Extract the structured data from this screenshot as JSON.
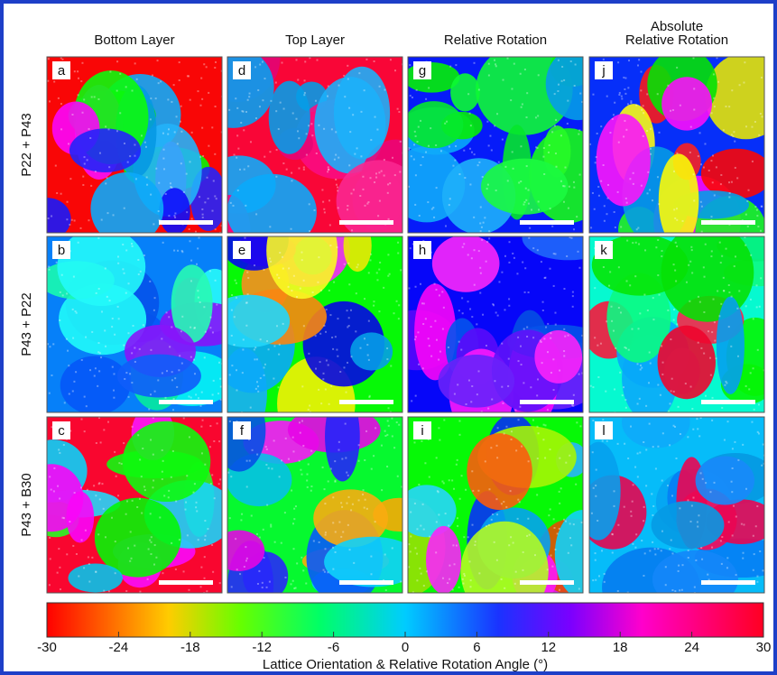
{
  "columns": [
    [
      "Bottom Layer"
    ],
    [
      "Top Layer"
    ],
    [
      "Relative Rotation"
    ],
    [
      "Absolute",
      "Relative Rotation"
    ]
  ],
  "rows": [
    {
      "label": "P22 + P43",
      "panels": [
        "a",
        "d",
        "g",
        "j"
      ]
    },
    {
      "label": "P43 + P22",
      "panels": [
        "b",
        "e",
        "h",
        "k"
      ]
    },
    {
      "label": "P43 + B30",
      "panels": [
        "c",
        "f",
        "i",
        "l"
      ]
    }
  ],
  "colorbar": {
    "lim": [
      -30,
      30
    ],
    "ticks": [
      -30,
      -24,
      -18,
      -12,
      -6,
      0,
      6,
      12,
      18,
      24,
      30
    ],
    "label": "Lattice Orientation & Relative Rotation Angle (°)"
  }
}
